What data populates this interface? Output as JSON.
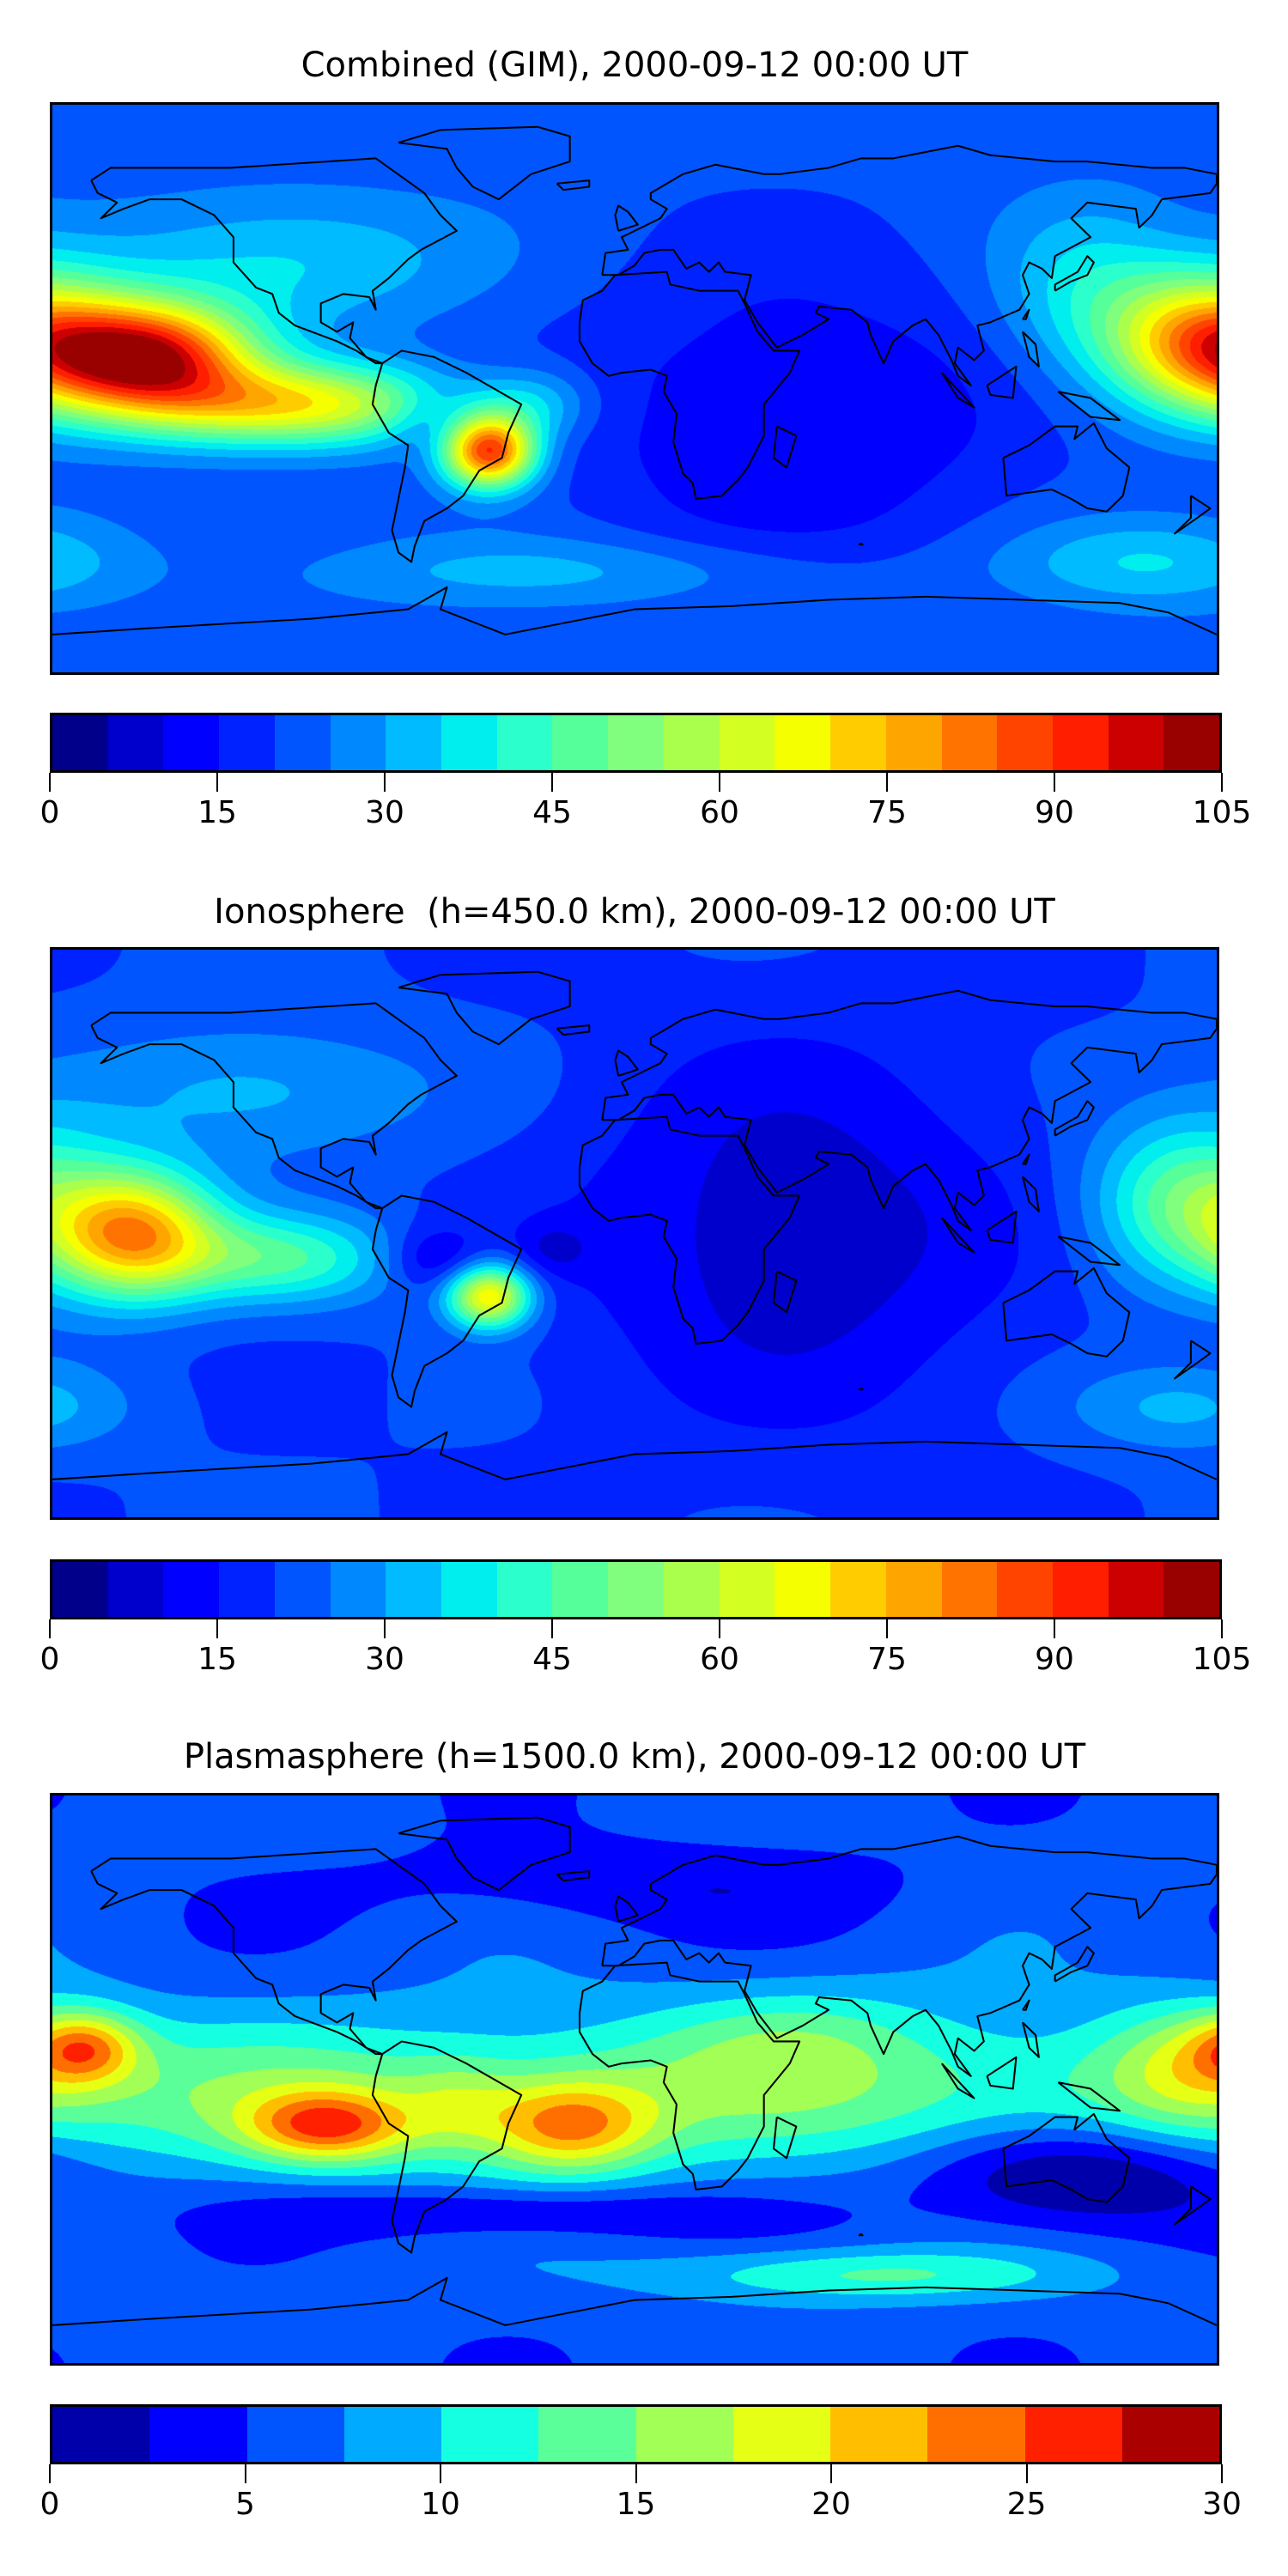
{
  "chart_data": [
    {
      "type": "heatmap",
      "title": "Combined (GIM), 2000-09-12 00:00 UT",
      "xlim": [
        -180,
        180
      ],
      "ylim": [
        -90,
        90
      ],
      "levels": [
        0,
        105
      ],
      "level_step": 5,
      "colorbar_ticks": [
        "0",
        "15",
        "30",
        "45",
        "60",
        "75",
        "90",
        "105"
      ],
      "colors": [
        "#00008a",
        "#0000cc",
        "#0000ff",
        "#0022ff",
        "#0055ff",
        "#0088ff",
        "#00bbff",
        "#00eeee",
        "#2bffcc",
        "#55ff9a",
        "#80ff7f",
        "#aaff4d",
        "#d4ff23",
        "#f5ff00",
        "#ffcc00",
        "#ffa500",
        "#ff7400",
        "#ff4400",
        "#ff1e00",
        "#cc0000",
        "#990000"
      ],
      "base": 22,
      "features": [
        {
          "lon": -150,
          "lat": 10,
          "amp": 72,
          "slon": 22,
          "slat": 12
        },
        {
          "lon": -105,
          "lat": -5,
          "amp": 45,
          "slon": 35,
          "slat": 9
        },
        {
          "lon": -45,
          "lat": -20,
          "amp": 68,
          "slon": 10,
          "slat": 8
        },
        {
          "lon": -62,
          "lat": -10,
          "amp": -10,
          "slon": 10,
          "slat": 8
        },
        {
          "lon": -110,
          "lat": 40,
          "amp": 14,
          "slon": 40,
          "slat": 15
        },
        {
          "lon": 175,
          "lat": 15,
          "amp": 50,
          "slon": 20,
          "slat": 15
        },
        {
          "lon": 140,
          "lat": 30,
          "amp": 15,
          "slon": 20,
          "slat": 20
        },
        {
          "lon": 50,
          "lat": -10,
          "amp": -12,
          "slon": 50,
          "slat": 35
        },
        {
          "lon": -20,
          "lat": -58,
          "amp": 10,
          "slon": 60,
          "slat": 8
        },
        {
          "lon": 160,
          "lat": -55,
          "amp": 14,
          "slon": 30,
          "slat": 10
        },
        {
          "lon": -30,
          "lat": -5,
          "amp": 12,
          "slon": 12,
          "slat": 8
        }
      ]
    },
    {
      "type": "heatmap",
      "title": "Ionosphere  (h=450.0 km), 2000-09-12 00:00 UT",
      "xlim": [
        -180,
        180
      ],
      "ylim": [
        -90,
        90
      ],
      "levels": [
        0,
        105
      ],
      "level_step": 5,
      "colorbar_ticks": [
        "0",
        "15",
        "30",
        "45",
        "60",
        "75",
        "90",
        "105"
      ],
      "colors": [
        "#00008a",
        "#0000cc",
        "#0000ff",
        "#0022ff",
        "#0055ff",
        "#0088ff",
        "#00bbff",
        "#00eeee",
        "#2bffcc",
        "#55ff9a",
        "#80ff7f",
        "#aaff4d",
        "#d4ff23",
        "#f5ff00",
        "#ffcc00",
        "#ffa500",
        "#ff7400",
        "#ff4400",
        "#ff1e00",
        "#cc0000",
        "#990000"
      ],
      "base": 20,
      "features": [
        {
          "lon": -155,
          "lat": 0,
          "amp": 55,
          "slon": 18,
          "slat": 14
        },
        {
          "lon": -110,
          "lat": -8,
          "amp": 25,
          "slon": 25,
          "slat": 10
        },
        {
          "lon": -45,
          "lat": -20,
          "amp": 50,
          "slon": 9,
          "slat": 7
        },
        {
          "lon": -62,
          "lat": -8,
          "amp": -12,
          "slon": 10,
          "slat": 7
        },
        {
          "lon": -25,
          "lat": -5,
          "amp": -8,
          "slon": 8,
          "slat": 6
        },
        {
          "lon": -120,
          "lat": 45,
          "amp": 12,
          "slon": 40,
          "slat": 15
        },
        {
          "lon": 170,
          "lat": 10,
          "amp": 28,
          "slon": 20,
          "slat": 18
        },
        {
          "lon": 50,
          "lat": 0,
          "amp": -14,
          "slon": 45,
          "slat": 40
        },
        {
          "lon": 170,
          "lat": -55,
          "amp": 12,
          "slon": 25,
          "slat": 10
        }
      ]
    },
    {
      "type": "heatmap",
      "title": "Plasmasphere (h=1500.0 km), 2000-09-12 00:00 UT",
      "xlim": [
        -180,
        180
      ],
      "ylim": [
        -90,
        90
      ],
      "levels": [
        0,
        30
      ],
      "level_step": 2.5,
      "colorbar_ticks": [
        "0",
        "5",
        "10",
        "15",
        "20",
        "25",
        "30"
      ],
      "colors": [
        "#0000aa",
        "#0000ff",
        "#0055ff",
        "#00aaff",
        "#15ffe1",
        "#5bff9a",
        "#a2ff55",
        "#e5ff15",
        "#ffbf00",
        "#ff6f00",
        "#ff2000",
        "#aa0000"
      ],
      "base": 6,
      "features": [
        {
          "lon": 0,
          "lat": -5,
          "amp": 8,
          "slon": 400,
          "slat": 18
        },
        {
          "lon": -95,
          "lat": -15,
          "amp": 14,
          "slon": 18,
          "slat": 8
        },
        {
          "lon": -170,
          "lat": 10,
          "amp": 12,
          "slon": 12,
          "slat": 8
        },
        {
          "lon": -20,
          "lat": -15,
          "amp": 12,
          "slon": 18,
          "slat": 10
        },
        {
          "lon": -55,
          "lat": -8,
          "amp": 4,
          "slon": 12,
          "slat": 10
        },
        {
          "lon": 170,
          "lat": 5,
          "amp": 6,
          "slon": 18,
          "slat": 14
        },
        {
          "lon": 135,
          "lat": -30,
          "amp": -9,
          "slon": 35,
          "slat": 12
        },
        {
          "lon": -40,
          "lat": -42,
          "amp": -5,
          "slon": 50,
          "slat": 6
        },
        {
          "lon": 70,
          "lat": -62,
          "amp": 7,
          "slon": 45,
          "slat": 6
        },
        {
          "lon": 0,
          "lat": 62,
          "amp": -3,
          "slon": 60,
          "slat": 10
        },
        {
          "lon": 50,
          "lat": 15,
          "amp": 4,
          "slon": 30,
          "slat": 12
        }
      ]
    }
  ]
}
